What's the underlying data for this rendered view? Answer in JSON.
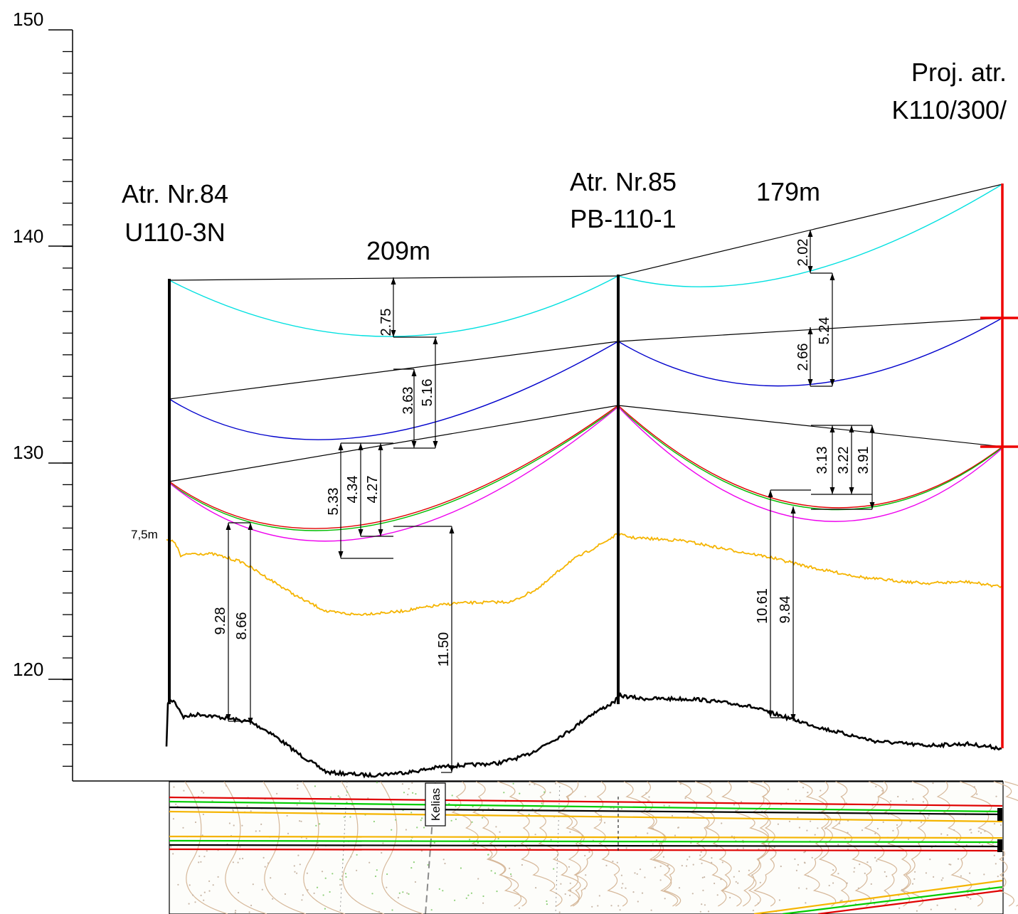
{
  "axis": {
    "tick_labels": [
      "150",
      "140",
      "130",
      "120"
    ],
    "ticks": [
      150,
      140,
      130,
      120
    ]
  },
  "spans": {
    "span1_length": "209m",
    "span2_length": "179m"
  },
  "towers": {
    "t84_name": "Atr. Nr.84",
    "t84_type": "U110-3N",
    "t85_name": "Atr. Nr.85",
    "t85_type": "PB-110-1",
    "proj_name": "Proj. atr.",
    "proj_type": "K110/300/"
  },
  "ground_clearance_label": "7,5m",
  "dimensions": {
    "span1_top_sag": "2.75",
    "span1_mid_sag": "3.63",
    "span1_top_to_mid": "5.16",
    "span1_low_sag_a": "5.33",
    "span1_low_sag_b": "4.34",
    "span1_low_sag_c": "4.27",
    "span1_clear_a": "9.28",
    "span1_clear_b": "8.66",
    "span1_clear_c": "11.50",
    "span2_top_sag": "2.02",
    "span2_mid_sag": "2.66",
    "span2_top_to_mid": "5.24",
    "span2_low_sag_a": "3.13",
    "span2_low_sag_b": "3.22",
    "span2_low_sag_c": "3.91",
    "span2_clear_a": "10.61",
    "span2_clear_b": "9.84"
  },
  "map": {
    "road_label": "Kelias"
  },
  "colors": {
    "top_conductor": "#00e0e0",
    "mid_conductor": "#0000cc",
    "low_red": "#e00000",
    "low_green": "#00bb00",
    "low_magenta": "#ee00ee",
    "vegetation": "#f5b400",
    "ground": "#000000",
    "proj_tower": "#ee0000",
    "contour": "#d6b89a"
  }
}
